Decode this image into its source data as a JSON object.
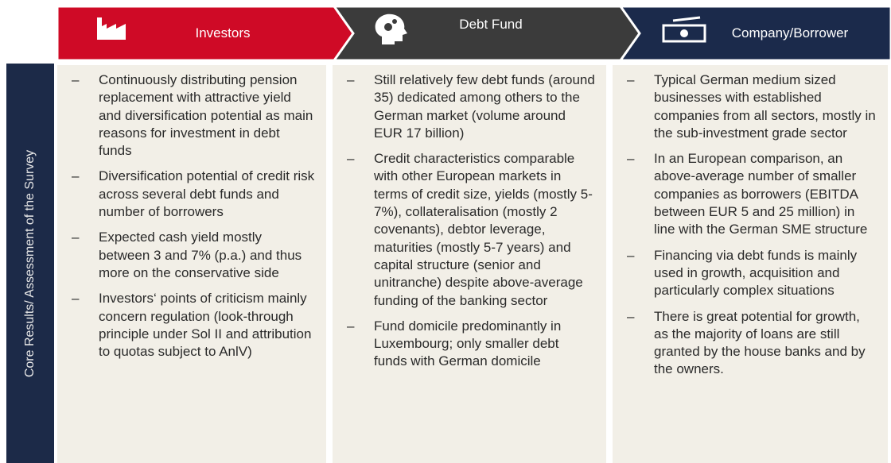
{
  "side_label": "Core Results/ Assessment of the Survey",
  "columns": [
    {
      "title": "Investors",
      "items": [
        "Continuously distributing pension replacement with attractive yield and diversification potential as main reasons for investment in debt funds",
        "Diversification potential of credit risk across several debt funds and number of borrowers",
        "Expected cash yield mostly between 3 and 7% (p.a.) and thus more on the conservative side",
        "Investors‘ points of criticism mainly concern regulation (look-through principle under Sol II and attribution to quotas subject to AnlV)"
      ]
    },
    {
      "title": "Debt Fund",
      "items": [
        "Still relatively few debt funds (around 35) dedicated among others to the German market (volume around EUR 17 billion)",
        "Credit characteristics comparable with other European markets in terms of credit size, yields (mostly 5-7%), collateralisation (mostly 2 covenants), debtor leverage, maturities (mostly 5-7 years) and capital structure (senior and unitranche) despite above-average funding of the banking sector",
        "Fund domicile predominantly in Luxembourg; only smaller debt funds with German domicile"
      ]
    },
    {
      "title": "Company/Borrower",
      "items": [
        "Typical German medium sized businesses with established companies from all sectors, mostly in the sub-investment grade sector",
        "In an European comparison, an above-average number of smaller companies as borrowers (EBITDA between EUR 5 and 25 million) in line with the German SME structure",
        "Financing via debt funds is mainly used in growth, acquisition and particularly complex situations",
        "There is great potential for growth, as the majority of loans are still granted by the house banks and by the owners."
      ]
    }
  ]
}
